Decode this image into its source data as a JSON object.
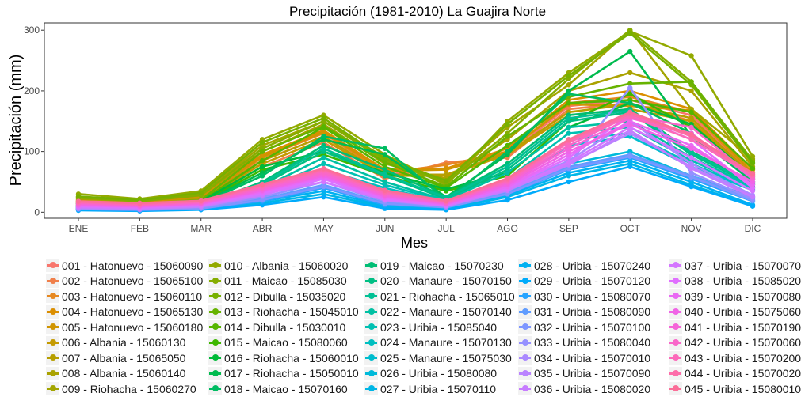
{
  "chart_data": {
    "type": "line",
    "title": "Precipitación (1981-2010)  La Guajira Norte",
    "xlabel": "Mes",
    "ylabel": "Precipitación (mm)",
    "ylim": [
      -10,
      312
    ],
    "yticks": [
      0,
      100,
      200,
      300
    ],
    "categories": [
      "ENE",
      "FEB",
      "MAR",
      "ABR",
      "MAY",
      "JUN",
      "JUL",
      "AGO",
      "SEP",
      "OCT",
      "NOV",
      "DIC"
    ],
    "grid": false,
    "legend_position": "bottom",
    "series": [
      {
        "name": "001 - Hatonuevo - 15060090",
        "color": "#F8766D",
        "values": [
          12,
          10,
          20,
          85,
          125,
          60,
          80,
          95,
          175,
          185,
          160,
          60
        ]
      },
      {
        "name": "002 - Hatonuevo - 15065100",
        "color": "#F07F4A",
        "values": [
          10,
          9,
          18,
          75,
          115,
          55,
          82,
          90,
          170,
          180,
          150,
          55
        ]
      },
      {
        "name": "003 - Hatonuevo - 15060110",
        "color": "#E6871F",
        "values": [
          15,
          12,
          22,
          90,
          130,
          65,
          78,
          100,
          180,
          190,
          165,
          62
        ]
      },
      {
        "name": "004 - Hatonuevo - 15065130",
        "color": "#DB8E00",
        "values": [
          20,
          15,
          25,
          95,
          135,
          70,
          72,
          105,
          185,
          200,
          170,
          70
        ]
      },
      {
        "name": "005 - Hatonuevo - 15060180",
        "color": "#D09400",
        "values": [
          18,
          14,
          24,
          92,
          132,
          68,
          70,
          100,
          178,
          175,
          168,
          65
        ]
      },
      {
        "name": "006 - Albania - 15060130",
        "color": "#C49A00",
        "values": [
          14,
          12,
          20,
          80,
          120,
          60,
          60,
          95,
          160,
          170,
          150,
          58
        ]
      },
      {
        "name": "007 - Albania - 15065050",
        "color": "#B79F00",
        "values": [
          16,
          13,
          22,
          85,
          125,
          62,
          62,
          98,
          165,
          178,
          155,
          60
        ]
      },
      {
        "name": "008 - Albania - 15060140",
        "color": "#AAA200",
        "values": [
          22,
          18,
          28,
          100,
          145,
          80,
          55,
          120,
          200,
          230,
          200,
          75
        ]
      },
      {
        "name": "009 - Riohacha - 15060270",
        "color": "#A3A500",
        "values": [
          25,
          20,
          30,
          110,
          150,
          90,
          50,
          140,
          210,
          300,
          170,
          88
        ]
      },
      {
        "name": "010 - Albania - 15060020",
        "color": "#93AA00",
        "values": [
          30,
          22,
          35,
          120,
          160,
          95,
          45,
          150,
          230,
          298,
          258,
          92
        ]
      },
      {
        "name": "011 - Maicao - 15085030",
        "color": "#85AD00",
        "values": [
          24,
          18,
          28,
          105,
          150,
          85,
          48,
          130,
          220,
          300,
          215,
          85
        ]
      },
      {
        "name": "012 - Dibulla - 15035020",
        "color": "#76B000",
        "values": [
          26,
          20,
          32,
          115,
          155,
          88,
          52,
          145,
          225,
          295,
          210,
          80
        ]
      },
      {
        "name": "013 - Riohacha - 15045010",
        "color": "#67B300",
        "values": [
          18,
          14,
          20,
          100,
          142,
          82,
          42,
          125,
          190,
          212,
          215,
          82
        ]
      },
      {
        "name": "014 - Dibulla - 15030010",
        "color": "#55B500",
        "values": [
          15,
          12,
          18,
          85,
          140,
          75,
          40,
          110,
          180,
          185,
          165,
          72
        ]
      },
      {
        "name": "015 - Maicao - 15080060",
        "color": "#3DB700",
        "values": [
          12,
          10,
          16,
          70,
          95,
          60,
          35,
          60,
          150,
          195,
          140,
          60
        ]
      },
      {
        "name": "016 - Riohacha - 15060010",
        "color": "#00BA38",
        "values": [
          14,
          11,
          18,
          75,
          100,
          65,
          38,
          65,
          140,
          180,
          145,
          58
        ]
      },
      {
        "name": "017 - Riohacha - 15050010",
        "color": "#00BB4E",
        "values": [
          10,
          9,
          15,
          65,
          120,
          95,
          25,
          95,
          200,
          265,
          125,
          55
        ]
      },
      {
        "name": "018 - Maicao - 15070160",
        "color": "#00BC62",
        "values": [
          10,
          8,
          14,
          60,
          125,
          105,
          20,
          100,
          195,
          180,
          130,
          50
        ]
      },
      {
        "name": "019 - Maicao - 15070230",
        "color": "#00BD74",
        "values": [
          8,
          7,
          12,
          50,
          110,
          70,
          25,
          80,
          160,
          170,
          100,
          48
        ]
      },
      {
        "name": "020 - Manaure - 15070150",
        "color": "#00BF84",
        "values": [
          8,
          6,
          10,
          45,
          100,
          60,
          22,
          70,
          150,
          165,
          95,
          45
        ]
      },
      {
        "name": "021 - Riohacha - 15065010",
        "color": "#00C094",
        "values": [
          9,
          7,
          11,
          48,
          105,
          62,
          24,
          75,
          155,
          168,
          98,
          46
        ]
      },
      {
        "name": "022 - Manaure - 15070140",
        "color": "#00C0A3",
        "values": [
          7,
          5,
          9,
          40,
          90,
          50,
          20,
          65,
          140,
          150,
          90,
          42
        ]
      },
      {
        "name": "023 - Uribia - 15085040",
        "color": "#00C0B2",
        "values": [
          6,
          5,
          8,
          35,
          80,
          45,
          18,
          55,
          130,
          140,
          85,
          40
        ]
      },
      {
        "name": "024 - Manaure - 15070130",
        "color": "#00BFC0",
        "values": [
          6,
          4,
          8,
          30,
          70,
          40,
          16,
          50,
          120,
          130,
          80,
          38
        ]
      },
      {
        "name": "025 - Manaure - 15075030",
        "color": "#00BDCE",
        "values": [
          5,
          4,
          7,
          28,
          60,
          35,
          15,
          45,
          110,
          125,
          75,
          36
        ]
      },
      {
        "name": "026 - Uribia - 15080080",
        "color": "#00BADA",
        "values": [
          5,
          3,
          6,
          20,
          40,
          15,
          10,
          35,
          80,
          100,
          60,
          25
        ]
      },
      {
        "name": "027 - Uribia - 15070110",
        "color": "#00B6E6",
        "values": [
          4,
          3,
          5,
          15,
          30,
          8,
          5,
          25,
          60,
          80,
          45,
          10
        ]
      },
      {
        "name": "028 - Uribia - 15070240",
        "color": "#00B1F1",
        "values": [
          4,
          3,
          5,
          18,
          35,
          10,
          7,
          28,
          65,
          85,
          50,
          12
        ]
      },
      {
        "name": "029 - Uribia - 15070120",
        "color": "#00ABFB",
        "values": [
          3,
          2,
          4,
          12,
          25,
          6,
          4,
          20,
          50,
          75,
          42,
          10
        ]
      },
      {
        "name": "030 - Uribia - 15080070",
        "color": "#27A4FF",
        "values": [
          5,
          3,
          6,
          18,
          40,
          12,
          8,
          30,
          70,
          90,
          55,
          18
        ]
      },
      {
        "name": "031 - Uribia - 15080090",
        "color": "#609CFF",
        "values": [
          6,
          4,
          7,
          22,
          45,
          15,
          9,
          32,
          75,
          95,
          60,
          20
        ]
      },
      {
        "name": "032 - Uribia - 15070100",
        "color": "#7E96FF",
        "values": [
          5,
          4,
          6,
          20,
          42,
          14,
          8,
          30,
          72,
          92,
          58,
          19
        ]
      },
      {
        "name": "033 - Uribia - 15080040",
        "color": "#9590FF",
        "values": [
          6,
          5,
          8,
          25,
          50,
          18,
          10,
          35,
          80,
          205,
          65,
          22
        ]
      },
      {
        "name": "034 - Uribia - 15070010",
        "color": "#AA89FF",
        "values": [
          8,
          6,
          10,
          30,
          70,
          25,
          12,
          40,
          85,
          150,
          80,
          28
        ]
      },
      {
        "name": "035 - Uribia - 15070090",
        "color": "#BA83FF",
        "values": [
          7,
          5,
          9,
          28,
          60,
          22,
          11,
          38,
          80,
          130,
          75,
          26
        ]
      },
      {
        "name": "036 - Uribia - 15080020",
        "color": "#C77CFF",
        "values": [
          8,
          6,
          10,
          28,
          55,
          20,
          10,
          36,
          78,
          135,
          72,
          25
        ]
      },
      {
        "name": "037 - Uribia - 15070070",
        "color": "#D476FF",
        "values": [
          9,
          7,
          11,
          30,
          50,
          20,
          11,
          38,
          82,
          140,
          90,
          35
        ]
      },
      {
        "name": "038 - Uribia - 15085020",
        "color": "#E06FFF",
        "values": [
          10,
          8,
          12,
          32,
          55,
          22,
          12,
          40,
          90,
          160,
          120,
          40
        ]
      },
      {
        "name": "039 - Uribia - 15070080",
        "color": "#E96AF3",
        "values": [
          11,
          9,
          13,
          34,
          58,
          24,
          13,
          42,
          95,
          150,
          110,
          45
        ]
      },
      {
        "name": "040 - Uribia - 15075060",
        "color": "#F064E6",
        "values": [
          12,
          10,
          14,
          36,
          60,
          26,
          14,
          45,
          100,
          145,
          105,
          50
        ]
      },
      {
        "name": "041 - Uribia - 15070190",
        "color": "#F565D8",
        "values": [
          14,
          11,
          15,
          38,
          62,
          28,
          15,
          48,
          105,
          155,
          130,
          55
        ]
      },
      {
        "name": "042 - Uribia - 15070060",
        "color": "#F967C9",
        "values": [
          15,
          12,
          16,
          40,
          65,
          30,
          16,
          50,
          110,
          160,
          140,
          58
        ]
      },
      {
        "name": "043 - Uribia - 15070200",
        "color": "#FC6ABA",
        "values": [
          16,
          13,
          17,
          42,
          68,
          32,
          17,
          52,
          115,
          158,
          120,
          60
        ]
      },
      {
        "name": "044 - Uribia - 15070020",
        "color": "#FD6CA9",
        "values": [
          17,
          14,
          18,
          44,
          70,
          34,
          18,
          54,
          118,
          162,
          125,
          62
        ]
      },
      {
        "name": "045 - Uribia - 15080010",
        "color": "#FB6E98",
        "values": [
          18,
          15,
          19,
          46,
          72,
          36,
          19,
          56,
          120,
          165,
          128,
          64
        ]
      }
    ]
  }
}
